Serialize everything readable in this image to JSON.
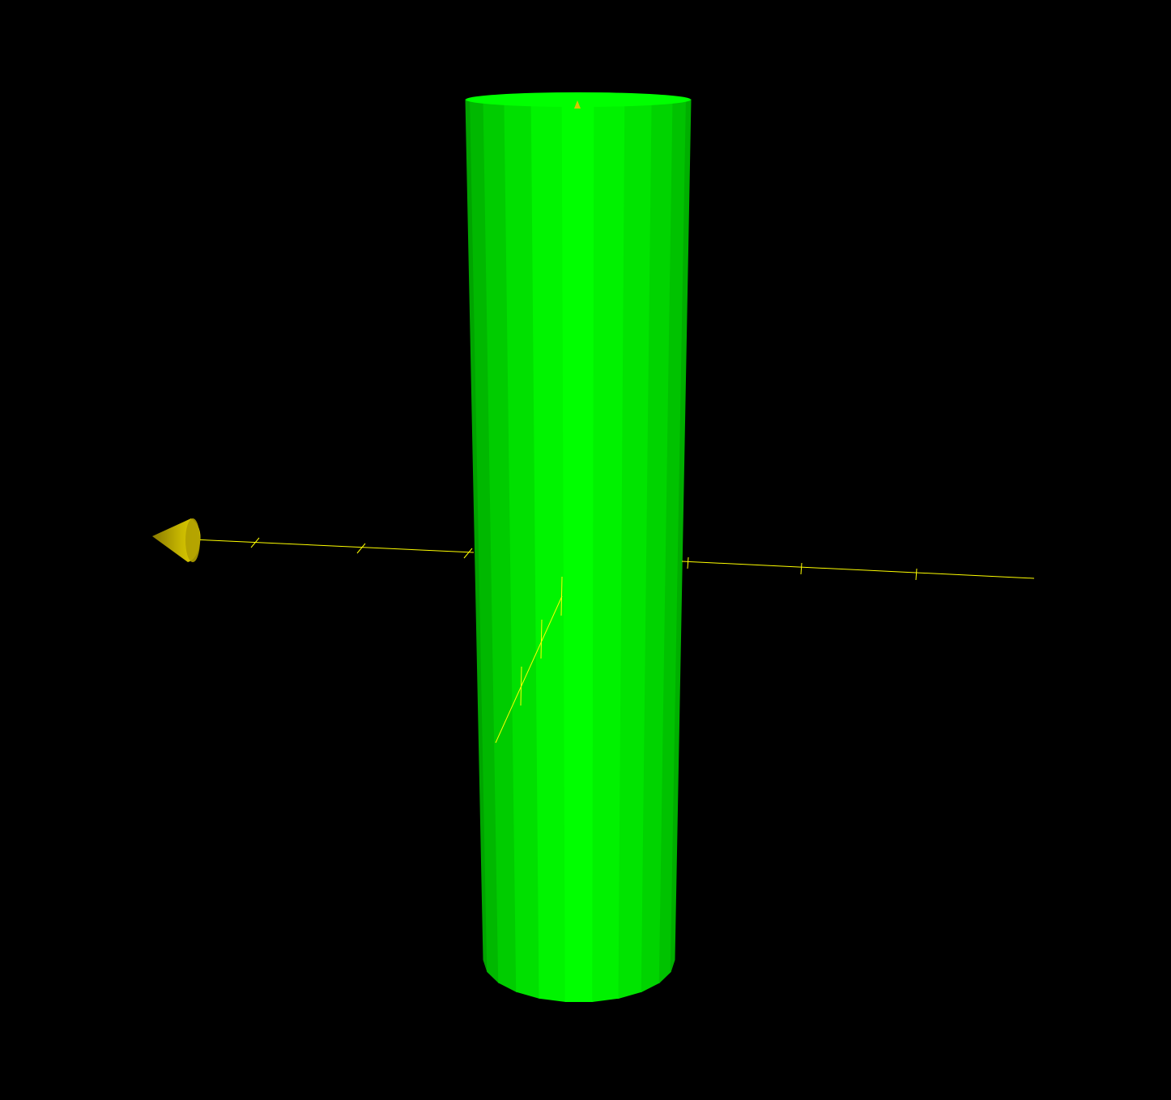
{
  "scene": {
    "background_color": "#000000",
    "object": {
      "shape": "cylinder",
      "color": "#00ff00",
      "facet_colors": [
        "#00a400",
        "#00b800",
        "#00cc00",
        "#00e000",
        "#00f400",
        "#00ff00",
        "#00f200",
        "#00e400",
        "#00d400",
        "#00c200",
        "#00ae00"
      ]
    },
    "axes": {
      "color": "#ffff00",
      "arrowhead_color": "#c8b800",
      "arrowhead_icon": "cone-icon"
    }
  }
}
